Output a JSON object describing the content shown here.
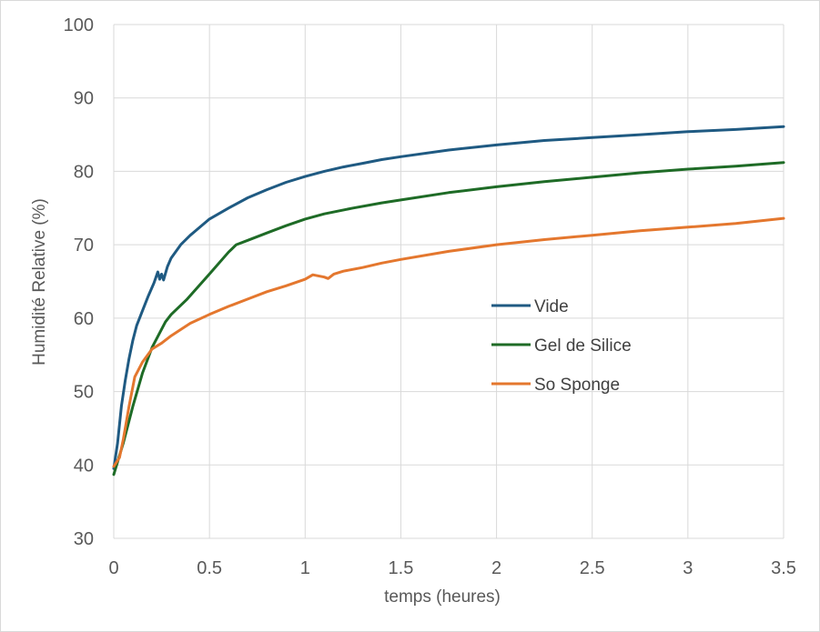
{
  "chart_data": {
    "type": "line",
    "title": "",
    "xlabel": "temps (heures)",
    "ylabel": "Humidité Relative (%)",
    "xlim": [
      0,
      3.5
    ],
    "ylim": [
      30,
      100
    ],
    "x_ticks": [
      "0",
      "0.5",
      "1",
      "1.5",
      "2",
      "2.5",
      "3",
      "3.5"
    ],
    "y_ticks": [
      "30",
      "40",
      "50",
      "60",
      "70",
      "80",
      "90",
      "100"
    ],
    "grid": true,
    "legend_position": "right-center",
    "series": [
      {
        "name": "Vide",
        "color": "#1f5a82",
        "points": [
          [
            0,
            39.5
          ],
          [
            0.02,
            43
          ],
          [
            0.04,
            48
          ],
          [
            0.06,
            51.5
          ],
          [
            0.08,
            54.5
          ],
          [
            0.1,
            57
          ],
          [
            0.12,
            59
          ],
          [
            0.15,
            61
          ],
          [
            0.18,
            63
          ],
          [
            0.21,
            64.8
          ],
          [
            0.23,
            66.3
          ],
          [
            0.24,
            65.3
          ],
          [
            0.25,
            66
          ],
          [
            0.26,
            65.2
          ],
          [
            0.28,
            67
          ],
          [
            0.3,
            68.2
          ],
          [
            0.35,
            70
          ],
          [
            0.4,
            71.3
          ],
          [
            0.5,
            73.5
          ],
          [
            0.6,
            75
          ],
          [
            0.7,
            76.4
          ],
          [
            0.8,
            77.5
          ],
          [
            0.9,
            78.5
          ],
          [
            1.0,
            79.3
          ],
          [
            1.1,
            80
          ],
          [
            1.2,
            80.6
          ],
          [
            1.3,
            81.1
          ],
          [
            1.4,
            81.6
          ],
          [
            1.5,
            82
          ],
          [
            1.75,
            82.9
          ],
          [
            2.0,
            83.6
          ],
          [
            2.25,
            84.2
          ],
          [
            2.5,
            84.6
          ],
          [
            2.75,
            85
          ],
          [
            3.0,
            85.4
          ],
          [
            3.25,
            85.7
          ],
          [
            3.5,
            86.1
          ]
        ]
      },
      {
        "name": "Gel de Silice",
        "color": "#1e6b26",
        "points": [
          [
            0,
            38.7
          ],
          [
            0.05,
            43
          ],
          [
            0.1,
            48
          ],
          [
            0.15,
            52.5
          ],
          [
            0.2,
            56
          ],
          [
            0.27,
            59.5
          ],
          [
            0.3,
            60.5
          ],
          [
            0.38,
            62.5
          ],
          [
            0.5,
            66
          ],
          [
            0.6,
            69
          ],
          [
            0.64,
            70
          ],
          [
            0.7,
            70.6
          ],
          [
            0.8,
            71.6
          ],
          [
            0.9,
            72.6
          ],
          [
            1.0,
            73.5
          ],
          [
            1.1,
            74.2
          ],
          [
            1.25,
            75
          ],
          [
            1.4,
            75.7
          ],
          [
            1.5,
            76.1
          ],
          [
            1.75,
            77.1
          ],
          [
            2.0,
            77.9
          ],
          [
            2.25,
            78.6
          ],
          [
            2.5,
            79.2
          ],
          [
            2.75,
            79.8
          ],
          [
            3.0,
            80.3
          ],
          [
            3.25,
            80.7
          ],
          [
            3.5,
            81.2
          ]
        ]
      },
      {
        "name": "So Sponge",
        "color": "#e4772e",
        "points": [
          [
            0,
            39.8
          ],
          [
            0.03,
            41
          ],
          [
            0.05,
            43.5
          ],
          [
            0.08,
            48
          ],
          [
            0.11,
            52
          ],
          [
            0.15,
            54
          ],
          [
            0.2,
            55.8
          ],
          [
            0.25,
            56.6
          ],
          [
            0.3,
            57.6
          ],
          [
            0.4,
            59.3
          ],
          [
            0.5,
            60.5
          ],
          [
            0.6,
            61.6
          ],
          [
            0.7,
            62.6
          ],
          [
            0.8,
            63.6
          ],
          [
            0.9,
            64.4
          ],
          [
            1.0,
            65.3
          ],
          [
            1.04,
            65.9
          ],
          [
            1.1,
            65.6
          ],
          [
            1.12,
            65.4
          ],
          [
            1.15,
            66
          ],
          [
            1.2,
            66.4
          ],
          [
            1.3,
            66.9
          ],
          [
            1.4,
            67.5
          ],
          [
            1.5,
            68
          ],
          [
            1.75,
            69.1
          ],
          [
            2.0,
            70
          ],
          [
            2.25,
            70.7
          ],
          [
            2.5,
            71.3
          ],
          [
            2.75,
            71.9
          ],
          [
            3.0,
            72.4
          ],
          [
            3.25,
            72.9
          ],
          [
            3.5,
            73.6
          ]
        ]
      }
    ]
  }
}
